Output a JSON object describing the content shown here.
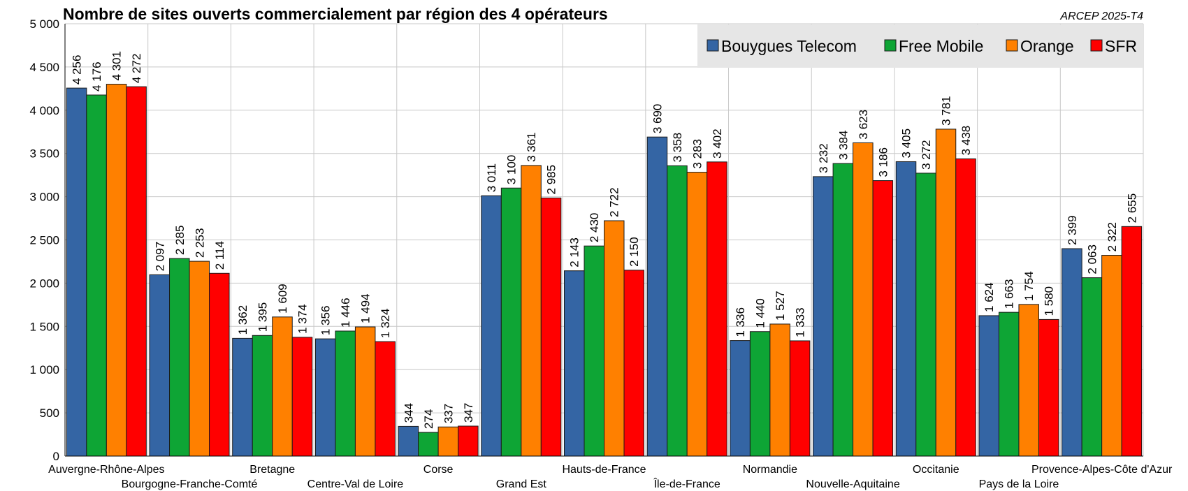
{
  "chart_data": {
    "type": "bar",
    "title": "Nombre de sites ouverts commercialement par région des 4 opérateurs",
    "source": "ARCEP 2025-T4",
    "xlabel": "",
    "ylabel": "",
    "ylim": [
      0,
      5000
    ],
    "yticks": [
      0,
      500,
      1000,
      1500,
      2000,
      2500,
      3000,
      3500,
      4000,
      4500,
      5000
    ],
    "ytick_labels": [
      "0",
      "500",
      "1 000",
      "1 500",
      "2 000",
      "2 500",
      "3 000",
      "3 500",
      "4 000",
      "4 500",
      "5 000"
    ],
    "grid": true,
    "legend_position": "top-right",
    "categories": [
      "Auvergne-Rhône-Alpes",
      "Bourgogne-Franche-Comté",
      "Bretagne",
      "Centre-Val de Loire",
      "Corse",
      "Grand Est",
      "Hauts-de-France",
      "Île-de-France",
      "Normandie",
      "Nouvelle-Aquitaine",
      "Occitanie",
      "Pays de la Loire",
      "Provence-Alpes-Côte d'Azur"
    ],
    "series": [
      {
        "name": "Bouygues Telecom",
        "color": "#3465a4",
        "values": [
          4256,
          2097,
          1362,
          1356,
          344,
          3011,
          2143,
          3690,
          1336,
          3232,
          3405,
          1624,
          2399
        ],
        "labels": [
          "4 256",
          "2 097",
          "1 362",
          "1 356",
          "344",
          "3 011",
          "2 143",
          "3 690",
          "1 336",
          "3 232",
          "3 405",
          "1 624",
          "2 399"
        ]
      },
      {
        "name": "Free Mobile",
        "color": "#0ea535",
        "values": [
          4176,
          2285,
          1395,
          1446,
          274,
          3100,
          2430,
          3358,
          1440,
          3384,
          3272,
          1663,
          2063
        ],
        "labels": [
          "4 176",
          "2 285",
          "1 395",
          "1 446",
          "274",
          "3 100",
          "2 430",
          "3 358",
          "1 440",
          "3 384",
          "3 272",
          "1 663",
          "2 063"
        ]
      },
      {
        "name": "Orange",
        "color": "#ff8000",
        "values": [
          4301,
          2253,
          1609,
          1494,
          337,
          3361,
          2722,
          3283,
          1527,
          3623,
          3781,
          1754,
          2322
        ],
        "labels": [
          "4 301",
          "2 253",
          "1 609",
          "1 494",
          "337",
          "3 361",
          "2 722",
          "3 283",
          "1 527",
          "3 623",
          "3 781",
          "1 754",
          "2 322"
        ]
      },
      {
        "name": "SFR",
        "color": "#ff0000",
        "values": [
          4272,
          2114,
          1374,
          1324,
          347,
          2985,
          2150,
          3402,
          1333,
          3186,
          3438,
          1580,
          2655
        ],
        "labels": [
          "4 272",
          "2 114",
          "1 374",
          "1 324",
          "347",
          "2 985",
          "2 150",
          "3 402",
          "1 333",
          "3 186",
          "3 438",
          "1 580",
          "2 655"
        ]
      }
    ]
  }
}
